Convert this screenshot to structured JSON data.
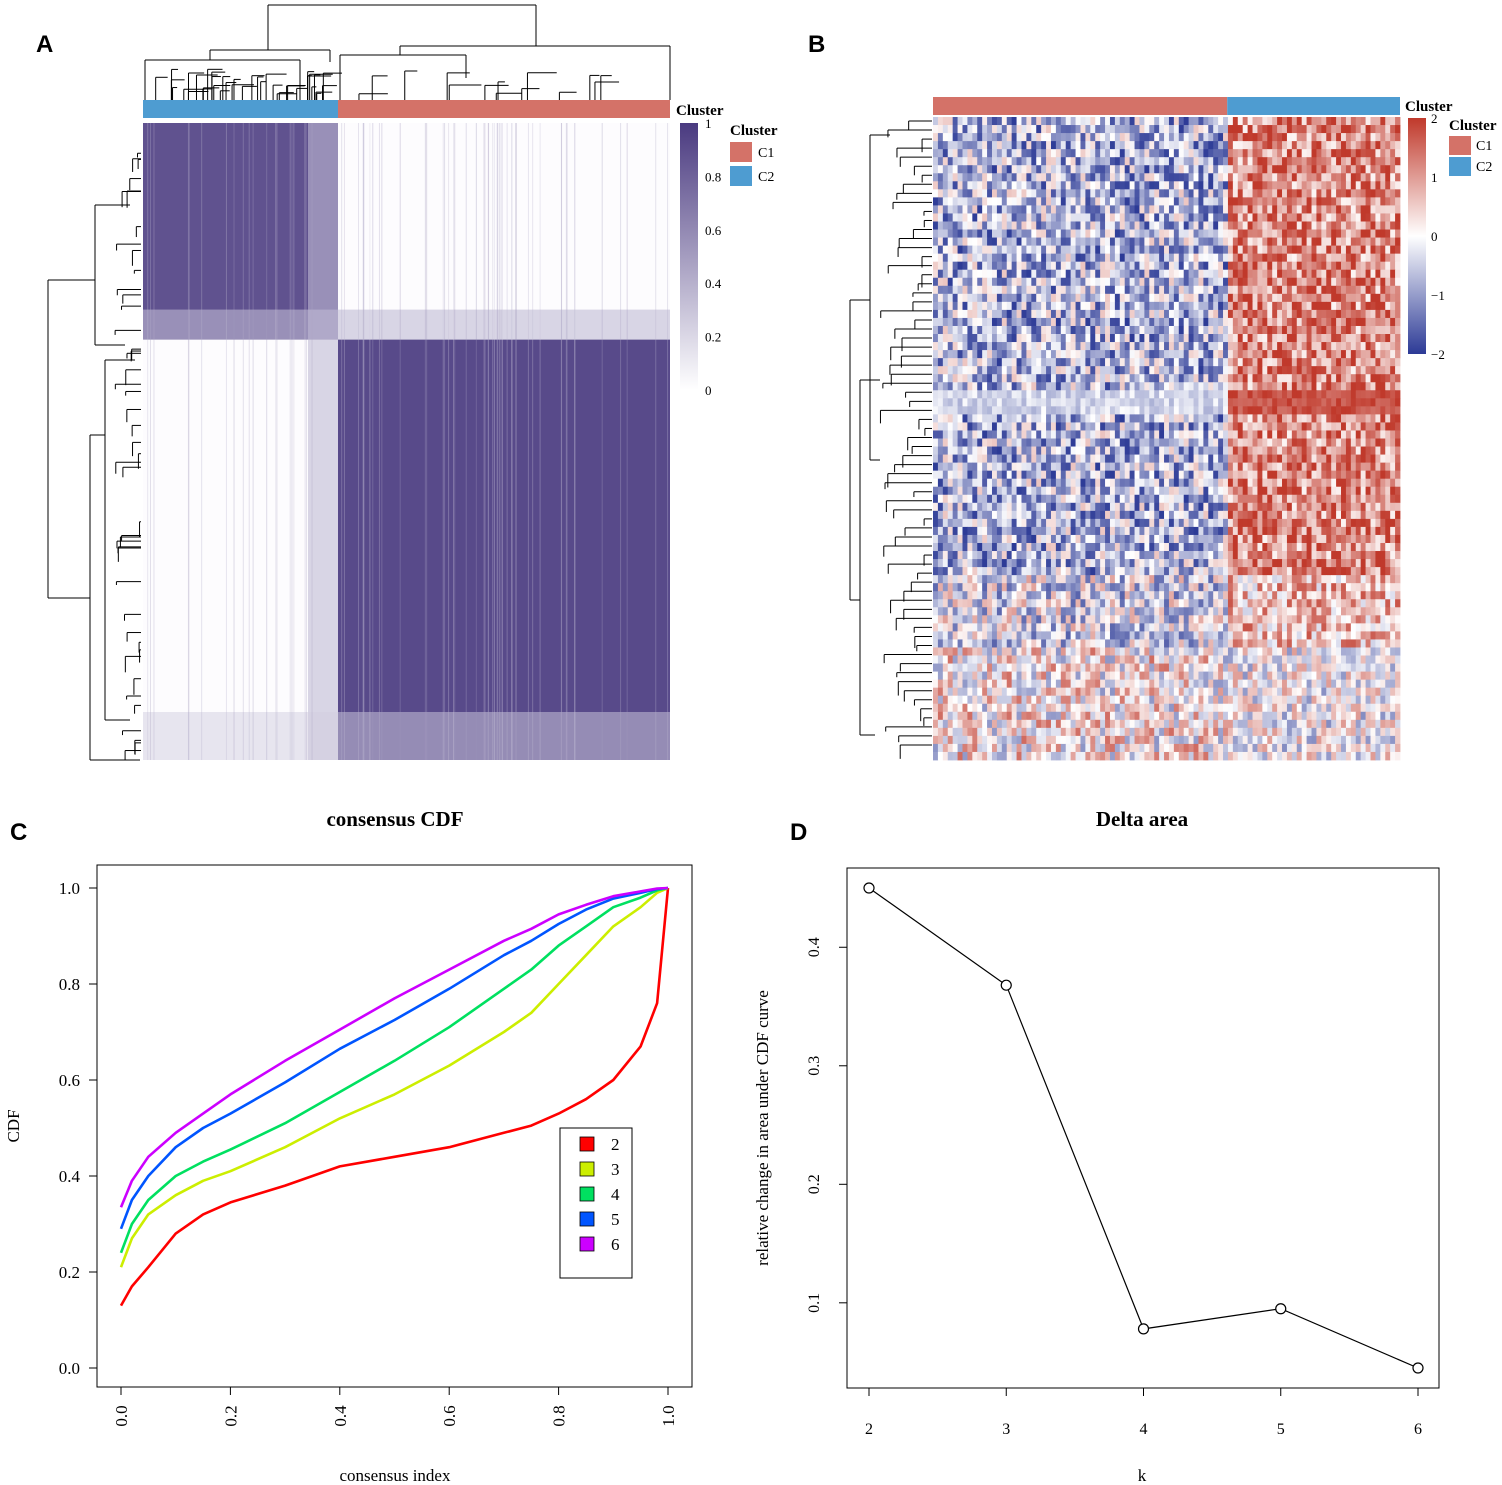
{
  "panels": {
    "A": {
      "letter": "A"
    },
    "B": {
      "letter": "B"
    },
    "C": {
      "letter": "C"
    },
    "D": {
      "letter": "D"
    }
  },
  "colors": {
    "C1": "#d47268",
    "C2": "#4e9cd1",
    "consensus_high": "#4a3a80",
    "heat_high": "#c0392b",
    "heat_low": "#2c3a96"
  },
  "chart_data": [
    {
      "type": "heatmap",
      "panel": "A",
      "description_type": "consensus matrix",
      "cluster_bar_label": "Cluster",
      "legend": {
        "title": "Cluster",
        "items": [
          "C1",
          "C2"
        ]
      },
      "colorbar": {
        "min": 0,
        "max": 1,
        "ticks": [
          "1",
          "0.8",
          "0.6",
          "0.4",
          "0.2",
          "0"
        ]
      },
      "clusters_column_order": [
        "C2",
        "C1"
      ],
      "cluster_fraction": {
        "C2": 0.37,
        "C1": 0.63
      }
    },
    {
      "type": "heatmap",
      "panel": "B",
      "description_type": "expression heatmap",
      "cluster_bar_label": "Cluster",
      "legend": {
        "title": "Cluster",
        "items": [
          "C1",
          "C2"
        ]
      },
      "colorbar": {
        "min": -2,
        "max": 2,
        "ticks": [
          "2",
          "1",
          "0",
          "−1",
          "−2"
        ]
      },
      "clusters_column_order": [
        "C1",
        "C2"
      ],
      "cluster_fraction": {
        "C1": 0.63,
        "C2": 0.37
      }
    },
    {
      "type": "line",
      "panel": "C",
      "title": "consensus CDF",
      "xlabel": "consensus index",
      "ylabel": "CDF",
      "xlim": [
        0,
        1
      ],
      "ylim": [
        0,
        1
      ],
      "xticks": [
        "0.0",
        "0.2",
        "0.4",
        "0.6",
        "0.8",
        "1.0"
      ],
      "yticks": [
        "0.0",
        "0.2",
        "0.4",
        "0.6",
        "0.8",
        "1.0"
      ],
      "legend": [
        "2",
        "3",
        "4",
        "5",
        "6"
      ],
      "x": [
        0,
        0.02,
        0.05,
        0.1,
        0.15,
        0.2,
        0.3,
        0.4,
        0.5,
        0.6,
        0.7,
        0.75,
        0.8,
        0.85,
        0.9,
        0.95,
        0.98,
        1.0
      ],
      "series": [
        {
          "name": "2",
          "color": "#ff0000",
          "values": [
            0.13,
            0.17,
            0.21,
            0.28,
            0.32,
            0.345,
            0.38,
            0.42,
            0.44,
            0.46,
            0.49,
            0.505,
            0.53,
            0.56,
            0.6,
            0.67,
            0.76,
            1.0
          ]
        },
        {
          "name": "3",
          "color": "#ccee00",
          "values": [
            0.21,
            0.27,
            0.32,
            0.36,
            0.39,
            0.41,
            0.46,
            0.52,
            0.57,
            0.63,
            0.7,
            0.74,
            0.8,
            0.86,
            0.92,
            0.96,
            0.99,
            1.0
          ]
        },
        {
          "name": "4",
          "color": "#00e060",
          "values": [
            0.24,
            0.3,
            0.35,
            0.4,
            0.43,
            0.455,
            0.51,
            0.575,
            0.64,
            0.71,
            0.79,
            0.83,
            0.88,
            0.92,
            0.96,
            0.98,
            0.995,
            1.0
          ]
        },
        {
          "name": "5",
          "color": "#0055ff",
          "values": [
            0.29,
            0.35,
            0.4,
            0.46,
            0.5,
            0.53,
            0.595,
            0.665,
            0.725,
            0.79,
            0.86,
            0.89,
            0.925,
            0.955,
            0.978,
            0.99,
            0.998,
            1.0
          ]
        },
        {
          "name": "6",
          "color": "#cc00ff",
          "values": [
            0.335,
            0.39,
            0.44,
            0.49,
            0.53,
            0.57,
            0.64,
            0.705,
            0.77,
            0.83,
            0.89,
            0.915,
            0.945,
            0.965,
            0.983,
            0.993,
            0.999,
            1.0
          ]
        }
      ]
    },
    {
      "type": "line",
      "panel": "D",
      "title": "Delta area",
      "xlabel": "k",
      "ylabel": "relative change in area under CDF curve",
      "x": [
        2,
        3,
        4,
        5,
        6
      ],
      "values": [
        0.45,
        0.368,
        0.078,
        0.095,
        0.045
      ],
      "xticks": [
        "2",
        "3",
        "4",
        "5",
        "6"
      ],
      "yticks": [
        "0.1",
        "0.2",
        "0.3",
        "0.4"
      ],
      "xlim": [
        1.85,
        6.15
      ],
      "ylim": [
        0.03,
        0.465
      ]
    }
  ]
}
